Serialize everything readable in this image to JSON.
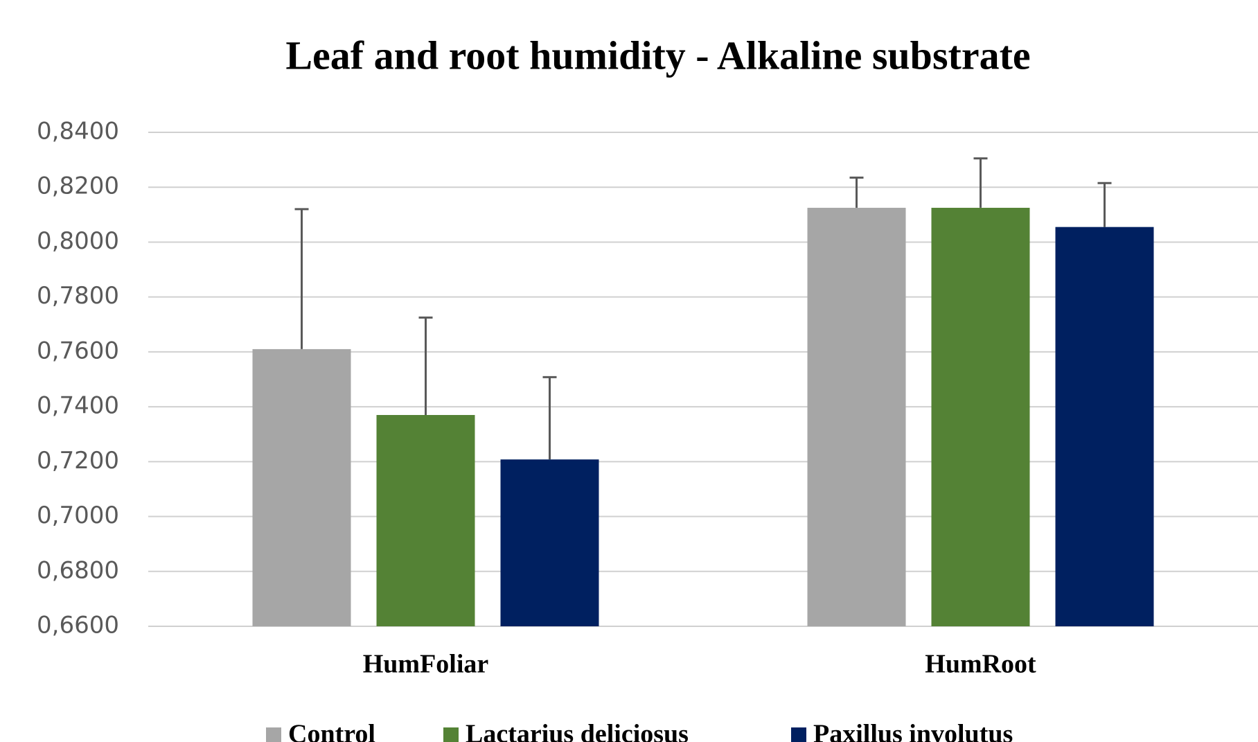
{
  "chart_data": {
    "type": "bar",
    "title": "Leaf and root humidity - Alkaline substrate",
    "categories": [
      "HumFoliar",
      "HumRoot"
    ],
    "series": [
      {
        "name": "Control",
        "color": "#a6a6a6",
        "values": [
          0.761,
          0.8125
        ],
        "errors": [
          0.051,
          0.011
        ]
      },
      {
        "name": "Lactarius deliciosus",
        "color": "#548235",
        "values": [
          0.737,
          0.8125
        ],
        "errors": [
          0.0355,
          0.018
        ]
      },
      {
        "name": "Paxillus involutus",
        "color": "#002060",
        "values": [
          0.7208,
          0.8055
        ],
        "errors": [
          0.03,
          0.016
        ]
      }
    ],
    "ylim": [
      0.66,
      0.84
    ],
    "yticks": [
      {
        "value": 0.66,
        "label": "0,6600"
      },
      {
        "value": 0.68,
        "label": "0,6800"
      },
      {
        "value": 0.7,
        "label": "0,7000"
      },
      {
        "value": 0.72,
        "label": "0,7200"
      },
      {
        "value": 0.74,
        "label": "0,7400"
      },
      {
        "value": 0.76,
        "label": "0,7600"
      },
      {
        "value": 0.78,
        "label": "0,7800"
      },
      {
        "value": 0.8,
        "label": "0,8000"
      },
      {
        "value": 0.82,
        "label": "0,8200"
      },
      {
        "value": 0.84,
        "label": "0,8400"
      }
    ],
    "grid": true,
    "legend": "bottom"
  }
}
